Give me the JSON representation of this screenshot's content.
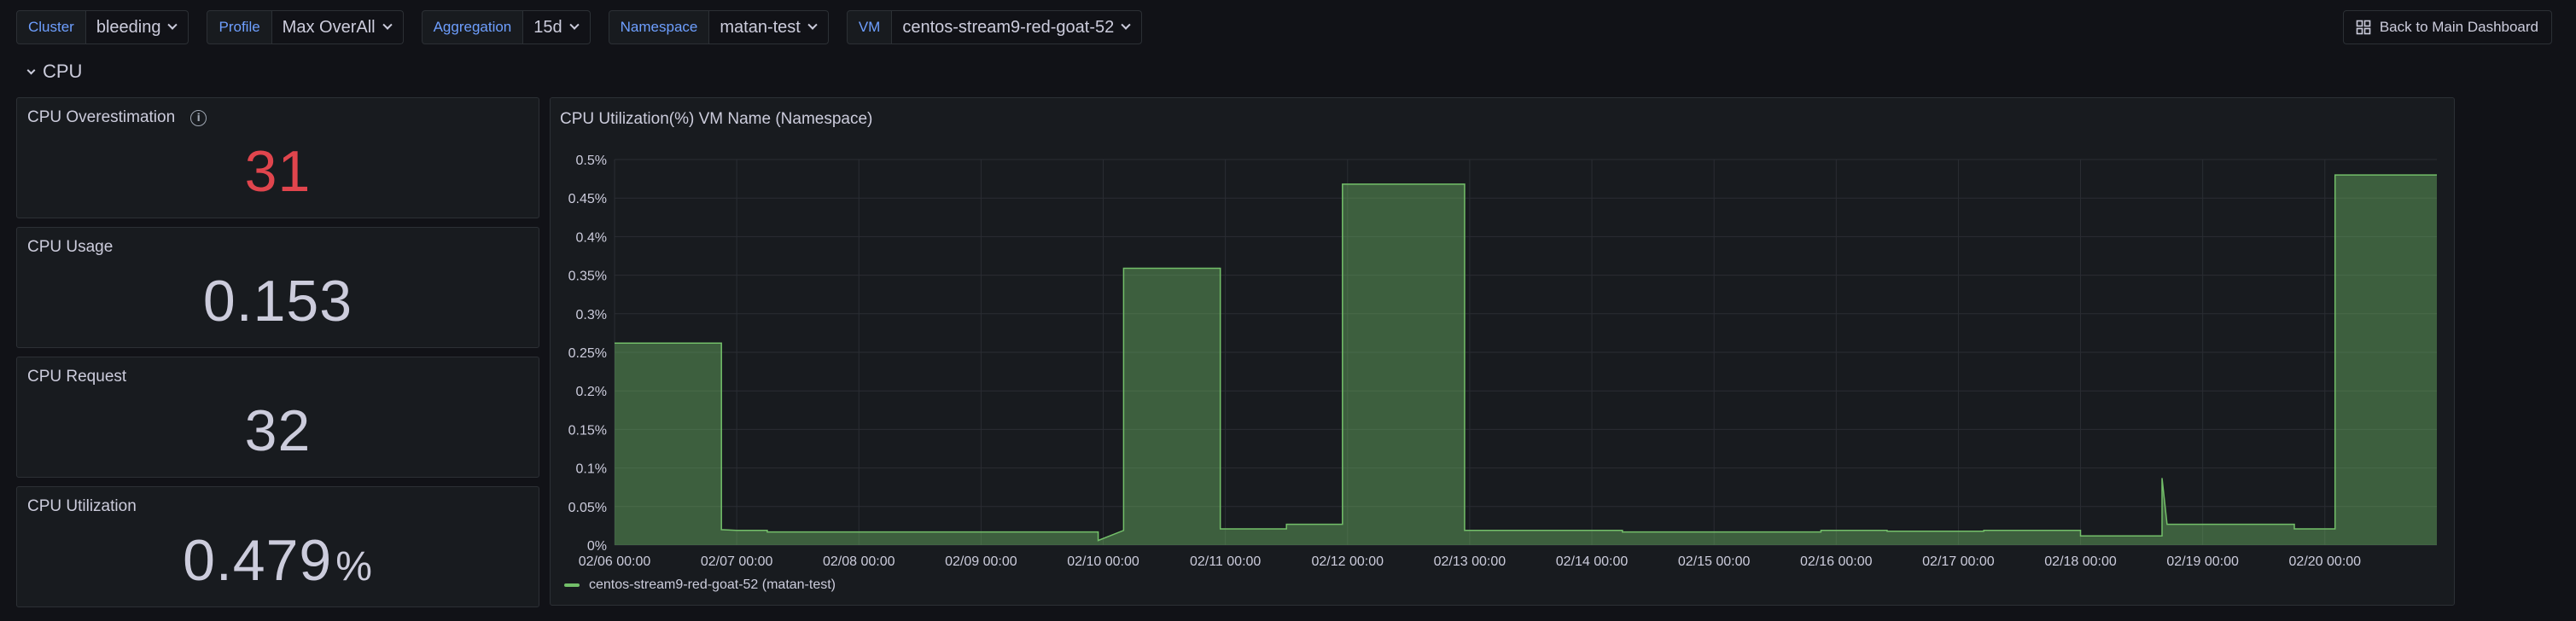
{
  "variables": [
    {
      "label": "Cluster",
      "value": "bleeding"
    },
    {
      "label": "Profile",
      "value": "Max OverAll"
    },
    {
      "label": "Aggregation",
      "value": "15d"
    },
    {
      "label": "Namespace",
      "value": "matan-test"
    },
    {
      "label": "VM",
      "value": "centos-stream9-red-goat-52"
    }
  ],
  "back_button": {
    "label": "Back to Main Dashboard",
    "icon": "grid-icon"
  },
  "row": {
    "title": "CPU",
    "collapsed": false
  },
  "stats": {
    "overestimation": {
      "title": "CPU Overestimation",
      "value": "31",
      "color": "#e0454d",
      "info_icon": "info-icon"
    },
    "usage": {
      "title": "CPU Usage",
      "value": "0.153"
    },
    "request": {
      "title": "CPU Request",
      "value": "32"
    },
    "utilization": {
      "title": "CPU Utilization",
      "value": "0.479",
      "unit": "%"
    }
  },
  "graph": {
    "title": "CPU Utilization(%) VM Name (Namespace)",
    "legend": "centos-stream9-red-goat-52 (matan-test)"
  },
  "chart_data": {
    "type": "area",
    "title": "CPU Utilization(%) VM Name (Namespace)",
    "ylim": [
      0,
      0.5
    ],
    "yticks": [
      "0%",
      "0.05%",
      "0.1%",
      "0.15%",
      "0.2%",
      "0.25%",
      "0.3%",
      "0.35%",
      "0.4%",
      "0.45%",
      "0.5%"
    ],
    "xlim": [
      "02/06 00:00",
      "02/20 22:00"
    ],
    "xticks": [
      "02/06 00:00",
      "02/07 00:00",
      "02/08 00:00",
      "02/09 00:00",
      "02/10 00:00",
      "02/11 00:00",
      "02/12 00:00",
      "02/13 00:00",
      "02/14 00:00",
      "02/15 00:00",
      "02/16 00:00",
      "02/17 00:00",
      "02/18 00:00",
      "02/19 00:00",
      "02/20 00:00"
    ],
    "grid": true,
    "colors": {
      "line": "#73bf69",
      "fill": "#73bf69"
    },
    "series": [
      {
        "name": "centos-stream9-red-goat-52 (matan-test)",
        "x": [
          "02/06 00:00",
          "02/06 21:00",
          "02/06 21:00",
          "02/07 00:00",
          "02/07 06:00",
          "02/07 06:00",
          "02/09 23:00",
          "02/09 23:00",
          "02/10 04:00",
          "02/10 04:00",
          "02/10 05:00",
          "02/10 05:00",
          "02/10 23:00",
          "02/10 23:00",
          "02/11 12:00",
          "02/11 12:00",
          "02/11 23:00",
          "02/11 23:00",
          "02/12 23:00",
          "02/12 23:00",
          "02/14 06:00",
          "02/14 06:00",
          "02/15 21:00",
          "02/15 21:00",
          "02/16 10:00",
          "02/16 10:00",
          "02/17 05:00",
          "02/17 05:00",
          "02/18 00:00",
          "02/18 00:00",
          "02/18 16:00",
          "02/18 16:00",
          "02/18 17:00",
          "02/18 17:00",
          "02/19 18:00",
          "02/19 18:00",
          "02/20 02:00",
          "02/20 02:00",
          "02/20 22:00"
        ],
        "y": [
          0.262,
          0.262,
          0.02,
          0.019,
          0.019,
          0.017,
          0.017,
          0.006,
          0.019,
          0.359,
          0.359,
          0.359,
          0.359,
          0.021,
          0.021,
          0.027,
          0.027,
          0.468,
          0.468,
          0.019,
          0.019,
          0.017,
          0.017,
          0.019,
          0.019,
          0.018,
          0.018,
          0.019,
          0.019,
          0.012,
          0.012,
          0.087,
          0.027,
          0.027,
          0.027,
          0.021,
          0.021,
          0.48,
          0.48
        ]
      }
    ]
  }
}
